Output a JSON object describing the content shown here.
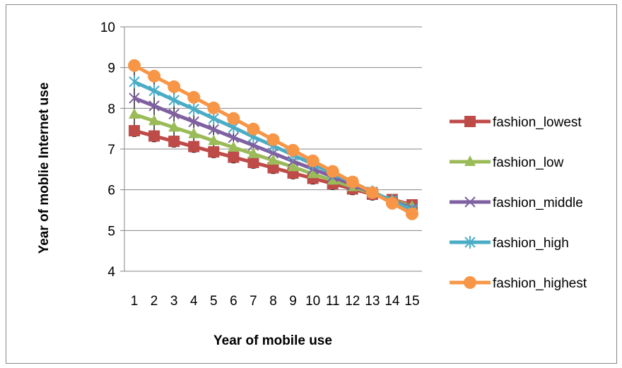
{
  "chart_data": {
    "type": "line",
    "xlabel": "Year of mobile use",
    "ylabel": "Year of moblie Internet use",
    "ylim": [
      4,
      10
    ],
    "yticks": [
      4,
      5,
      6,
      7,
      8,
      9,
      10
    ],
    "categories": [
      "1",
      "2",
      "3",
      "4",
      "5",
      "6",
      "7",
      "8",
      "9",
      "10",
      "11",
      "12",
      "13",
      "14",
      "15"
    ],
    "grid": "horizontal",
    "legend_position": "right",
    "error_bars": true,
    "series": [
      {
        "name": "fashion_lowest",
        "color": "#BE4B48",
        "marker": "square",
        "values": [
          7.45,
          7.32,
          7.19,
          7.06,
          6.93,
          6.8,
          6.67,
          6.54,
          6.41,
          6.28,
          6.15,
          6.02,
          5.89,
          5.76,
          5.63
        ]
      },
      {
        "name": "fashion_low",
        "color": "#9BBB59",
        "marker": "triangle",
        "values": [
          7.85,
          7.69,
          7.53,
          7.37,
          7.2,
          7.04,
          6.88,
          6.72,
          6.56,
          6.39,
          6.23,
          6.07,
          5.91,
          5.75,
          5.59
        ]
      },
      {
        "name": "fashion_middle",
        "color": "#7F60A0",
        "marker": "x",
        "values": [
          8.25,
          8.06,
          7.86,
          7.67,
          7.48,
          7.28,
          7.09,
          6.9,
          6.7,
          6.51,
          6.32,
          6.12,
          5.93,
          5.74,
          5.54
        ]
      },
      {
        "name": "fashion_high",
        "color": "#4BACC6",
        "marker": "star",
        "values": [
          8.65,
          8.43,
          8.2,
          7.98,
          7.75,
          7.53,
          7.3,
          7.08,
          6.85,
          6.63,
          6.4,
          6.18,
          5.95,
          5.73,
          5.5
        ]
      },
      {
        "name": "fashion_highest",
        "color": "#F79646",
        "marker": "circle",
        "values": [
          9.05,
          8.79,
          8.53,
          8.27,
          8.01,
          7.75,
          7.49,
          7.23,
          6.97,
          6.71,
          6.45,
          6.19,
          5.93,
          5.67,
          5.41
        ]
      }
    ]
  }
}
